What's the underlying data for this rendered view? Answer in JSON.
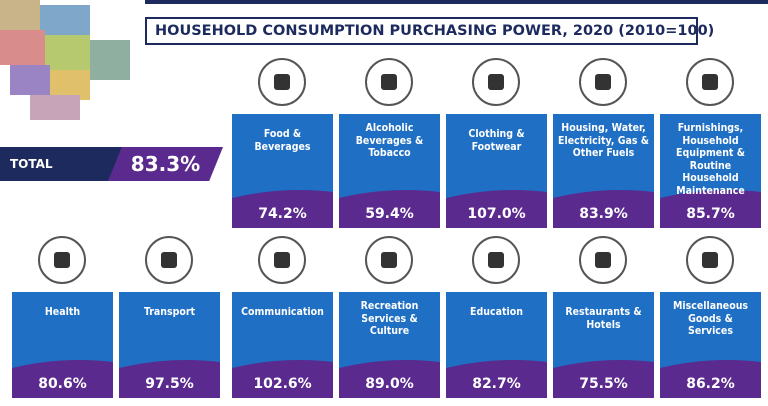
{
  "header": {
    "title": "HOUSEHOLD CONSUMPTION PURCHASING POWER, 2020 (2010=100)"
  },
  "total": {
    "label": "TOTAL",
    "value": "83.3%"
  },
  "cards": [
    {
      "label": [
        "Food &",
        "Beverages"
      ],
      "value": "74.2%"
    },
    {
      "label": [
        "Alcoholic",
        "Beverages &",
        "Tobacco"
      ],
      "value": "59.4%"
    },
    {
      "label": [
        "Clothing &",
        "Footwear"
      ],
      "value": "107.0%"
    },
    {
      "label": [
        "Housing, Water,",
        "Electricity, Gas &",
        "Other Fuels"
      ],
      "value": "83.9%"
    },
    {
      "label": [
        "Furnishings,",
        "Household",
        "Equipment & Routine",
        "Household",
        "Maintenance"
      ],
      "value": "85.7%"
    },
    {
      "label": [
        "Health"
      ],
      "value": "80.6%"
    },
    {
      "label": [
        "Transport"
      ],
      "value": "97.5%"
    },
    {
      "label": [
        "Communication"
      ],
      "value": "102.6%"
    },
    {
      "label": [
        "Recreation",
        "Services &",
        "Culture"
      ],
      "value": "89.0%"
    },
    {
      "label": [
        "Education"
      ],
      "value": "82.7%"
    },
    {
      "label": [
        "Restaurants &",
        "Hotels"
      ],
      "value": "75.5%"
    },
    {
      "label": [
        "Miscellaneous",
        "Goods &",
        "Services"
      ],
      "value": "86.2%"
    }
  ]
}
